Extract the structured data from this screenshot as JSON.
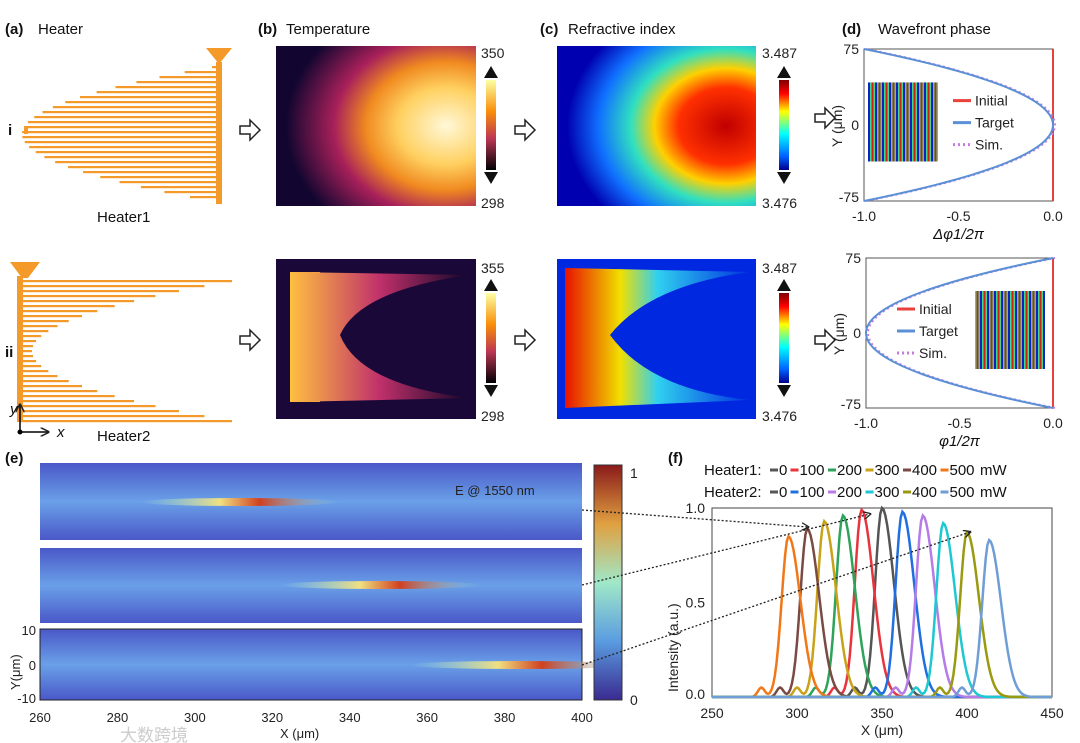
{
  "panels": {
    "a": {
      "tag": "(a)",
      "title": "Heater",
      "row_i": "i",
      "row_ii": "ii",
      "heater1": "Heater1",
      "heater2": "Heater2",
      "axis_y": "y",
      "axis_x": "x"
    },
    "b": {
      "tag": "(b)",
      "title": "Temperature",
      "top_max": "350",
      "top_min": "298",
      "bot_max": "355",
      "bot_min": "298"
    },
    "c": {
      "tag": "(c)",
      "title": "Refractive index",
      "top_max": "3.487",
      "top_min": "3.476",
      "bot_max": "3.487",
      "bot_min": "3.476"
    },
    "d": {
      "tag": "(d)",
      "title": "Wavefront phase"
    },
    "e": {
      "tag": "(e)",
      "annotation": "E @ 1550 nm",
      "cbar_max": "1",
      "cbar_min": "0",
      "ylabel": "Y(μm)",
      "xlabel": "X (μm)",
      "yticks": [
        "10",
        "0",
        "-10"
      ],
      "xticks": [
        "260",
        "280",
        "300",
        "320",
        "340",
        "360",
        "380",
        "400"
      ]
    },
    "f": {
      "tag": "(f)"
    }
  },
  "watermark": "大数跨境",
  "chart_data": [
    {
      "type": "line",
      "panel": "d-top",
      "xlabel": "Δφ1/2π",
      "ylabel": "Y (μm)",
      "xlim": [
        -1,
        0
      ],
      "ylim": [
        -75,
        75
      ],
      "xticks": [
        "-1.0",
        "-0.5",
        "0.0"
      ],
      "yticks": [
        "75",
        "0",
        "-75"
      ],
      "legend": [
        "Initial",
        "Target",
        "Sim."
      ],
      "legend_placement": "center",
      "series": [
        {
          "name": "Initial",
          "color": "#e8413c",
          "shape": "x=0"
        },
        {
          "name": "Target",
          "color": "#5b8fd6",
          "shape": "x=-(y/75)^2"
        },
        {
          "name": "Sim.",
          "color": "#c77be0",
          "shape": "x=-(y/75)^2"
        }
      ]
    },
    {
      "type": "line",
      "panel": "d-bottom",
      "xlabel": "φ1/2π",
      "ylabel": "Y (μm)",
      "xlim": [
        -1,
        0
      ],
      "ylim": [
        -75,
        75
      ],
      "xticks": [
        "-1.0",
        "-0.5",
        "0.0"
      ],
      "yticks": [
        "75",
        "0",
        "-75"
      ],
      "legend": [
        "Initial",
        "Target",
        "Sim."
      ],
      "legend_placement": "center-left",
      "series": [
        {
          "name": "Initial",
          "color": "#e8413c",
          "shape": "x=0"
        },
        {
          "name": "Target",
          "color": "#5b8fd6",
          "shape": "x=(y/75)^2-1"
        },
        {
          "name": "Sim.",
          "color": "#c77be0",
          "shape": "x=(y/75)^2-1"
        }
      ]
    },
    {
      "type": "line",
      "panel": "f",
      "xlabel": "X (μm)",
      "ylabel": "Intensity (a.u.)",
      "xlim": [
        250,
        450
      ],
      "ylim": [
        0,
        1
      ],
      "xticks": [
        "250",
        "300",
        "350",
        "400",
        "450"
      ],
      "yticks": [
        "0.0",
        "0.5",
        "1.0"
      ],
      "legend_rows": [
        {
          "label": "Heater1:",
          "unit": "mW",
          "items": [
            {
              "name": "0",
              "color": "#555555",
              "peak_x": 350,
              "peak_y": 1.0
            },
            {
              "name": "100",
              "color": "#e8343c",
              "peak_x": 338,
              "peak_y": 0.99
            },
            {
              "name": "200",
              "color": "#2ea35a",
              "peak_x": 327,
              "peak_y": 0.96
            },
            {
              "name": "300",
              "color": "#c9a21a",
              "peak_x": 316,
              "peak_y": 0.93
            },
            {
              "name": "400",
              "color": "#7a4a44",
              "peak_x": 306,
              "peak_y": 0.89
            },
            {
              "name": "500",
              "color": "#f07818",
              "peak_x": 295,
              "peak_y": 0.85
            }
          ]
        },
        {
          "label": "Heater2:",
          "unit": "mW",
          "items": [
            {
              "name": "0",
              "color": "#555555",
              "peak_x": 350,
              "peak_y": 1.0
            },
            {
              "name": "100",
              "color": "#1f6fe0",
              "peak_x": 362,
              "peak_y": 0.98
            },
            {
              "name": "200",
              "color": "#b57be6",
              "peak_x": 374,
              "peak_y": 0.96
            },
            {
              "name": "300",
              "color": "#1ec8d2",
              "peak_x": 386,
              "peak_y": 0.92
            },
            {
              "name": "400",
              "color": "#9a9a10",
              "peak_x": 400,
              "peak_y": 0.87
            },
            {
              "name": "500",
              "color": "#6f9ed6",
              "peak_x": 413,
              "peak_y": 0.83
            }
          ]
        }
      ]
    }
  ]
}
